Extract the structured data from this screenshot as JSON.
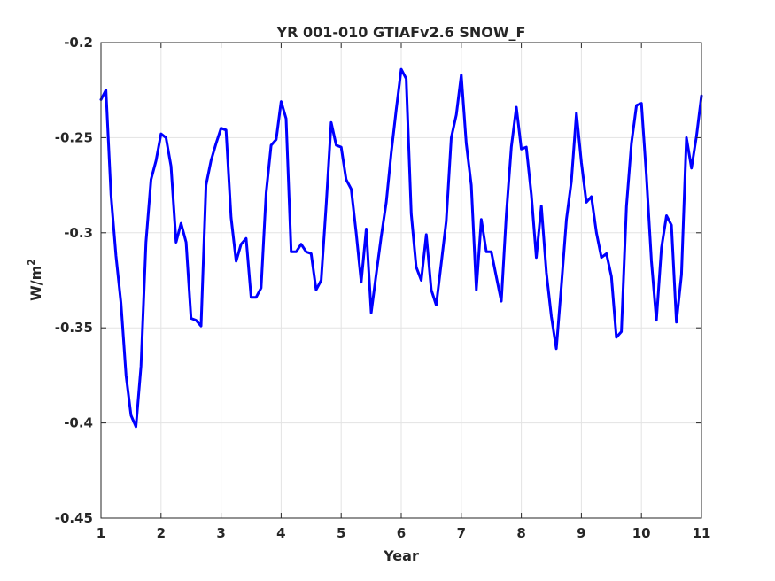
{
  "chart_data": {
    "type": "line",
    "title": "YR 001-010 GTIAFv2.6 SNOW_F",
    "xlabel": "Year",
    "ylabel": "W/m",
    "ylabel_superscript": "2",
    "xlim": [
      1,
      11
    ],
    "ylim": [
      -0.45,
      -0.2
    ],
    "xticks": [
      1,
      2,
      3,
      4,
      5,
      6,
      7,
      8,
      9,
      10,
      11
    ],
    "yticks": [
      -0.45,
      -0.4,
      -0.35,
      -0.3,
      -0.25,
      -0.2
    ],
    "ytick_labels": [
      "-0.45",
      "-0.4",
      "-0.35",
      "-0.3",
      "-0.25",
      "-0.2"
    ],
    "grid": true,
    "series": [
      {
        "color": "#0000ff",
        "x": [
          1.0,
          1.083,
          1.167,
          1.25,
          1.333,
          1.417,
          1.5,
          1.583,
          1.667,
          1.75,
          1.833,
          1.917,
          2.0,
          2.083,
          2.167,
          2.25,
          2.333,
          2.417,
          2.5,
          2.583,
          2.667,
          2.75,
          2.833,
          2.917,
          3.0,
          3.083,
          3.167,
          3.25,
          3.333,
          3.417,
          3.5,
          3.583,
          3.667,
          3.75,
          3.833,
          3.917,
          4.0,
          4.083,
          4.167,
          4.25,
          4.333,
          4.417,
          4.5,
          4.583,
          4.667,
          4.75,
          4.833,
          4.917,
          5.0,
          5.083,
          5.167,
          5.25,
          5.333,
          5.417,
          5.5,
          5.583,
          5.667,
          5.75,
          5.833,
          5.917,
          6.0,
          6.083,
          6.167,
          6.25,
          6.333,
          6.417,
          6.5,
          6.583,
          6.667,
          6.75,
          6.833,
          6.917,
          7.0,
          7.083,
          7.167,
          7.25,
          7.333,
          7.417,
          7.5,
          7.583,
          7.667,
          7.75,
          7.833,
          7.917,
          8.0,
          8.083,
          8.167,
          8.25,
          8.333,
          8.417,
          8.5,
          8.583,
          8.667,
          8.75,
          8.833,
          8.917,
          9.0,
          9.083,
          9.167,
          9.25,
          9.333,
          9.417,
          9.5,
          9.583,
          9.667,
          9.75,
          9.833,
          9.917,
          10.0,
          10.083,
          10.167,
          10.25,
          10.333,
          10.417,
          10.5,
          10.583,
          10.667,
          10.75,
          10.833,
          10.917,
          11.0
        ],
        "values": [
          -0.23,
          -0.225,
          -0.28,
          -0.312,
          -0.337,
          -0.375,
          -0.396,
          -0.402,
          -0.37,
          -0.305,
          -0.272,
          -0.262,
          -0.248,
          -0.25,
          -0.265,
          -0.305,
          -0.295,
          -0.305,
          -0.345,
          -0.346,
          -0.349,
          -0.275,
          -0.262,
          -0.253,
          -0.245,
          -0.246,
          -0.292,
          -0.315,
          -0.306,
          -0.303,
          -0.334,
          -0.334,
          -0.329,
          -0.279,
          -0.254,
          -0.251,
          -0.231,
          -0.24,
          -0.31,
          -0.31,
          -0.306,
          -0.31,
          -0.311,
          -0.33,
          -0.325,
          -0.285,
          -0.242,
          -0.254,
          -0.255,
          -0.272,
          -0.277,
          -0.3,
          -0.326,
          -0.298,
          -0.342,
          -0.322,
          -0.302,
          -0.284,
          -0.258,
          -0.235,
          -0.214,
          -0.219,
          -0.29,
          -0.318,
          -0.325,
          -0.301,
          -0.33,
          -0.338,
          -0.316,
          -0.294,
          -0.25,
          -0.238,
          -0.217,
          -0.253,
          -0.275,
          -0.33,
          -0.293,
          -0.31,
          -0.31,
          -0.323,
          -0.336,
          -0.29,
          -0.255,
          -0.234,
          -0.256,
          -0.255,
          -0.28,
          -0.313,
          -0.286,
          -0.321,
          -0.344,
          -0.361,
          -0.328,
          -0.293,
          -0.273,
          -0.237,
          -0.263,
          -0.284,
          -0.281,
          -0.3,
          -0.313,
          -0.311,
          -0.323,
          -0.355,
          -0.352,
          -0.286,
          -0.253,
          -0.233,
          -0.232,
          -0.27,
          -0.315,
          -0.346,
          -0.308,
          -0.291,
          -0.296,
          -0.347,
          -0.322,
          -0.25,
          -0.266,
          -0.249,
          -0.228
        ]
      }
    ]
  }
}
